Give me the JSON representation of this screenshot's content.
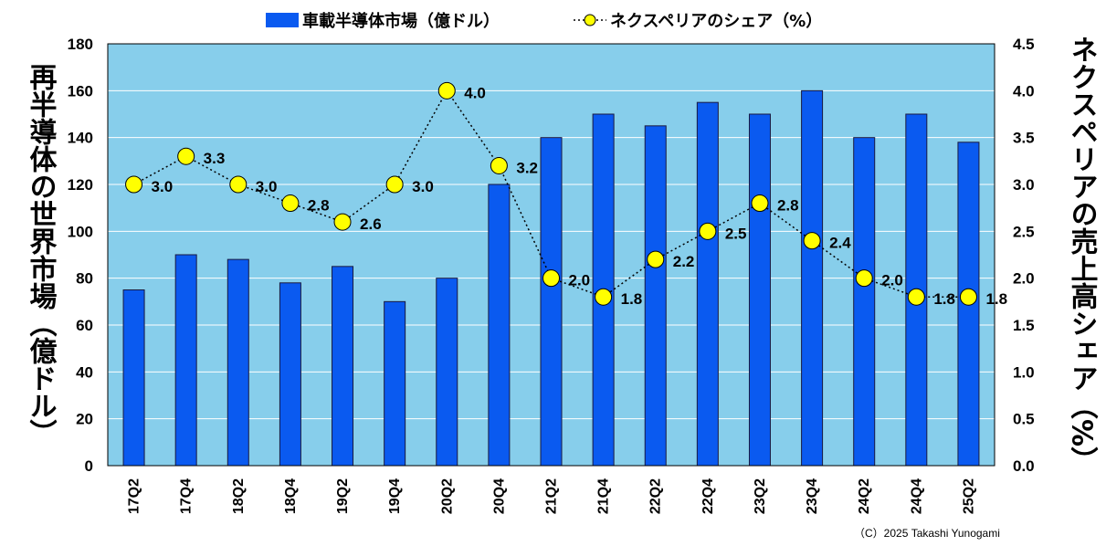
{
  "chart_data": {
    "type": "bar+line",
    "categories": [
      "17Q2",
      "17Q4",
      "18Q2",
      "18Q4",
      "19Q2",
      "19Q4",
      "20Q2",
      "20Q4",
      "21Q2",
      "21Q4",
      "22Q2",
      "22Q4",
      "23Q2",
      "23Q4",
      "24Q2",
      "24Q4",
      "25Q2"
    ],
    "series": [
      {
        "name": "車載半導体市場（億ドル）",
        "type": "bar",
        "axis": "left",
        "values": [
          75,
          90,
          88,
          78,
          85,
          70,
          80,
          120,
          140,
          150,
          145,
          155,
          150,
          160,
          140,
          150,
          138
        ]
      },
      {
        "name": "ネクスペリアのシェア（%）",
        "type": "line",
        "axis": "right",
        "values": [
          3.0,
          3.3,
          3.0,
          2.8,
          2.6,
          3.0,
          4.0,
          3.2,
          2.0,
          1.8,
          2.2,
          2.5,
          2.8,
          2.4,
          2.0,
          1.8,
          1.8
        ],
        "labels": [
          "3.0",
          "3.3",
          "3.0",
          "2.8",
          "2.6",
          "3.0",
          "4.0",
          "3.2",
          "2.0",
          "1.8",
          "2.2",
          "2.5",
          "2.8",
          "2.4",
          "2.0",
          "1.8",
          "1.8"
        ]
      }
    ],
    "ylabel": "再半導体の世界市場（億ドル）",
    "y2label": "ネクスペリアの売上高シェア（%）",
    "ylim": [
      0,
      180
    ],
    "y2lim": [
      0,
      4.5
    ],
    "yticks": [
      "0",
      "20",
      "40",
      "60",
      "80",
      "100",
      "120",
      "140",
      "160",
      "180"
    ],
    "y2ticks": [
      "0.0",
      "0.5",
      "1.0",
      "1.5",
      "2.0",
      "2.5",
      "3.0",
      "3.5",
      "4.0",
      "4.5"
    ],
    "grid": true,
    "legend_position": "top",
    "colors": {
      "plot_bg": "#87CEEB",
      "bar": "#0A5AF0",
      "marker": "#FFFF00",
      "line": "#000000",
      "grid": "#FFFFFF"
    }
  },
  "credit": "（C）2025 Takashi Yunogami"
}
